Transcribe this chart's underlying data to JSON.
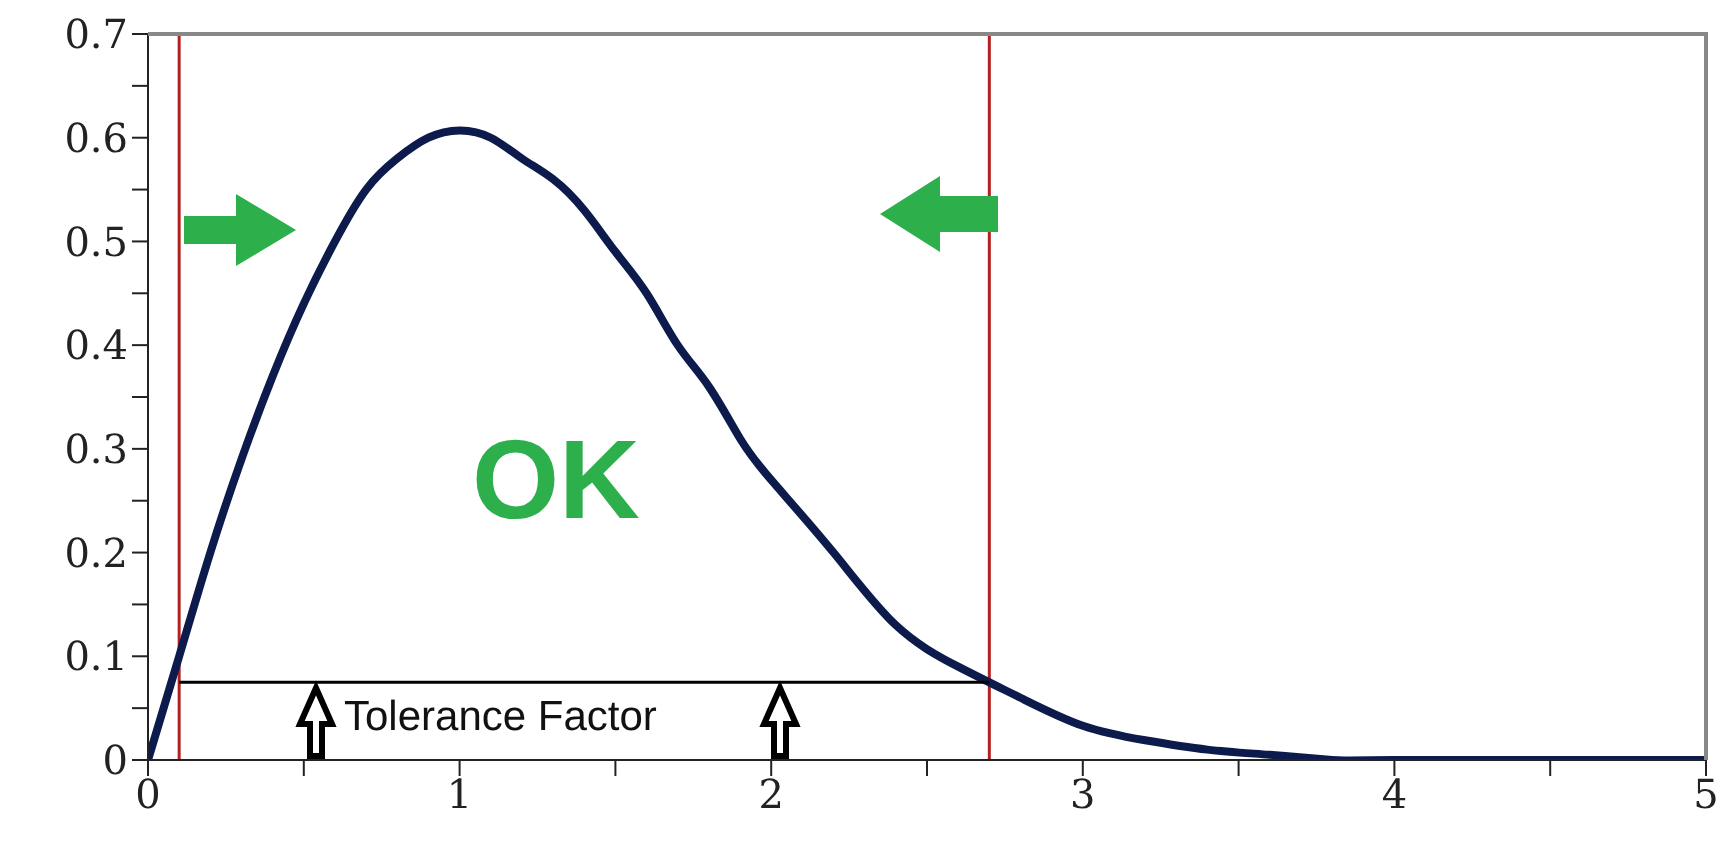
{
  "chart_data": {
    "type": "line",
    "series": [
      {
        "color": "#0d1b4c",
        "x": [
          0,
          0.1,
          0.2,
          0.3,
          0.4,
          0.5,
          0.6,
          0.7,
          0.8,
          0.9,
          1,
          1.1,
          1.2,
          1.3,
          1.4,
          1.5,
          1.6,
          1.7,
          1.8,
          1.9,
          2,
          2.2,
          2.4,
          2.6,
          2.8,
          3,
          3.2,
          3.4,
          3.6,
          3.8,
          4,
          5
        ],
        "values": [
          0,
          0.1,
          0.2,
          0.29,
          0.37,
          0.44,
          0.5,
          0.55,
          0.58,
          0.6,
          0.607,
          0.6,
          0.58,
          0.56,
          0.53,
          0.49,
          0.45,
          0.4,
          0.36,
          0.31,
          0.27,
          0.2,
          0.13,
          0.09,
          0.06,
          0.033,
          0.019,
          0.01,
          0.005,
          0,
          0,
          0
        ]
      },
      {
        "color": "#000000",
        "x": [
          0.1,
          2.7
        ],
        "values": [
          0.075,
          0.075
        ]
      }
    ],
    "xlim": [
      0,
      5
    ],
    "xticks": [
      0,
      {
        "value": 0.5,
        "label": null
      },
      1,
      {
        "value": 1.5,
        "label": null
      },
      2,
      {
        "value": 2.5,
        "label": null
      },
      3,
      {
        "value": 3.5,
        "label": null
      },
      4,
      {
        "value": 4.5,
        "label": null
      },
      5
    ],
    "ylim": [
      0,
      0.7
    ],
    "yticks": [
      0,
      {
        "value": 0.05,
        "label": null
      },
      0.1,
      {
        "value": 0.15,
        "label": null
      },
      0.2,
      {
        "value": 0.25,
        "label": null
      },
      0.3,
      {
        "value": 0.35,
        "label": null
      },
      0.4,
      {
        "value": 0.45,
        "label": null
      },
      0.5,
      {
        "value": 0.55,
        "label": null
      },
      0.6,
      {
        "value": 0.65,
        "label": null
      },
      0.7
    ],
    "ref_lines": [
      {
        "axis": "x",
        "value": 0.1,
        "color": "#b22222"
      },
      {
        "axis": "x",
        "value": 2.7,
        "color": "#b22222"
      }
    ],
    "annotations": [
      "OK",
      "Tolerance Factor"
    ],
    "legend": false,
    "marker": "none"
  }
}
